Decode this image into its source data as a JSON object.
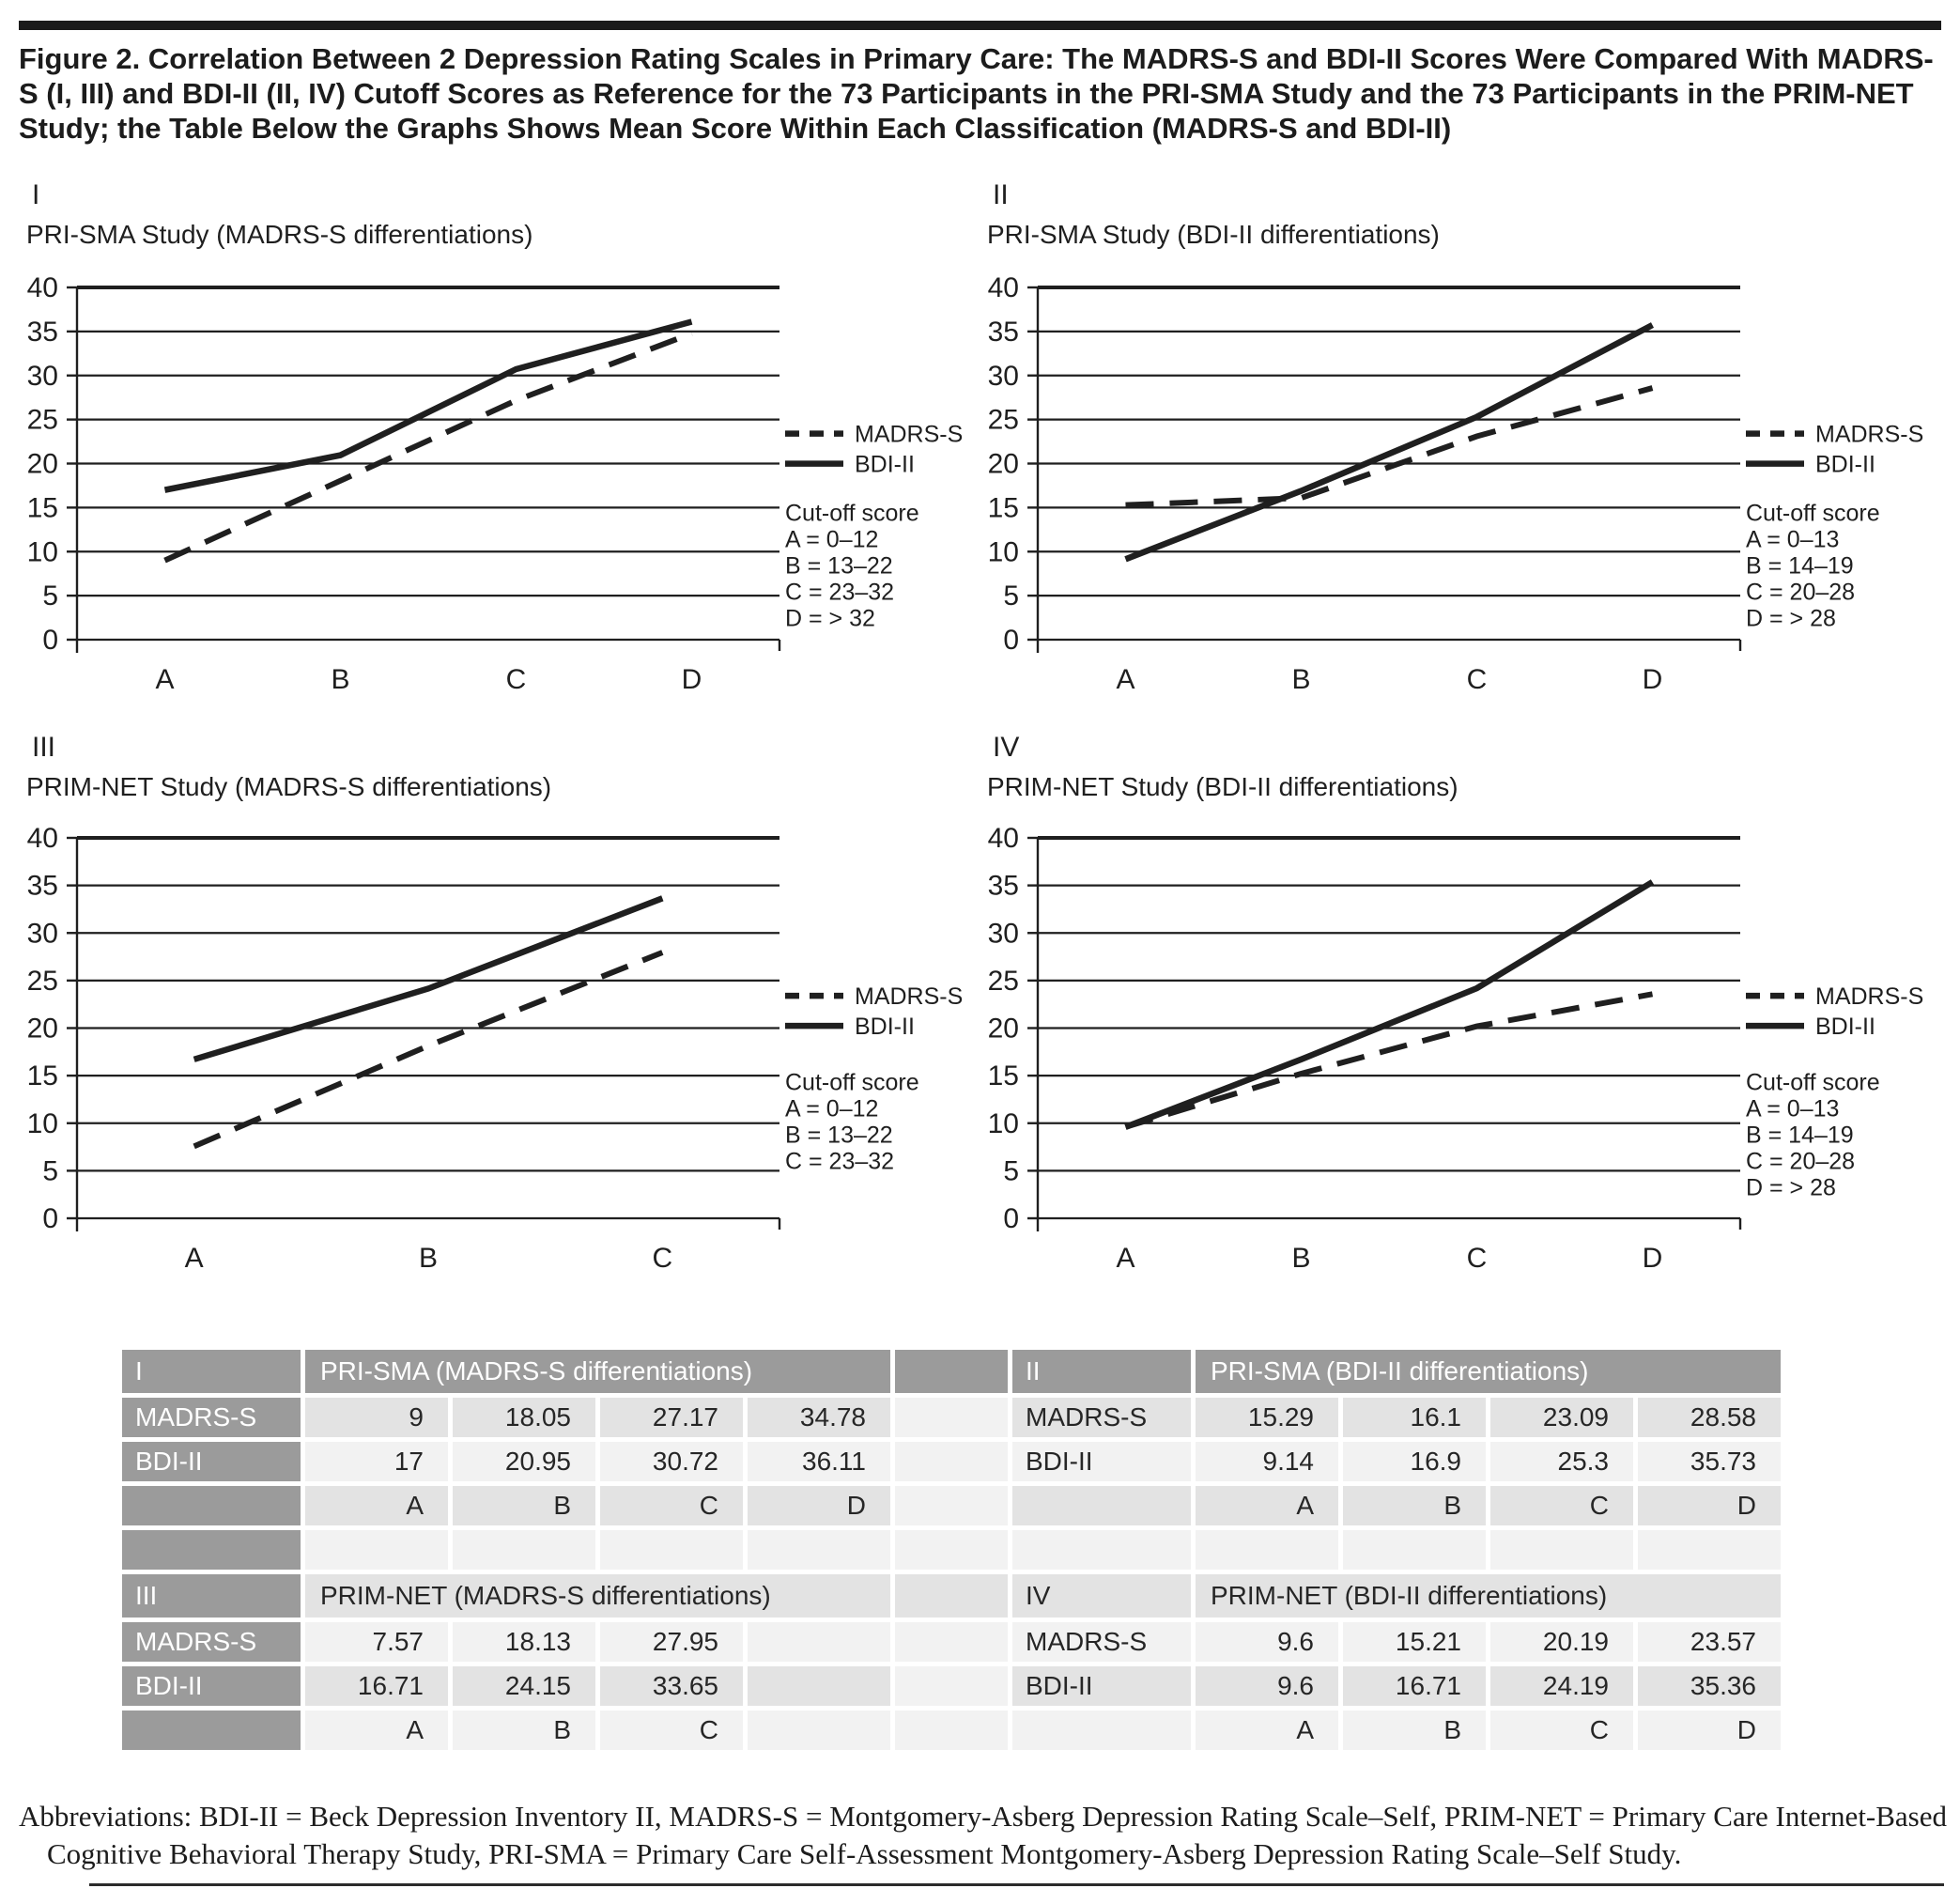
{
  "figure": {
    "title": "Figure 2. Correlation Between 2 Depression Rating Scales in Primary Care: The MADRS-S and BDI-II Scores Were Compared With MADRS-S (I, III) and BDI-II (II, IV) Cutoff Scores as Reference for the 73 Participants in the PRI-SMA Study and the 73 Participants in the PRIM-NET Study; the Table Below the Graphs Shows Mean Score Within Each Classification (MADRS-S and BDI-II)"
  },
  "colors": {
    "ink": "#1f1f1f",
    "table_header_gray": "#9b9b9b",
    "row_shade_dark": "#e3e3e3",
    "row_shade_light": "#f2f2f2",
    "rule_black": "#1a1a1a"
  },
  "chart_data": [
    {
      "type": "line",
      "numeral": "I",
      "title": "PRI-SMA Study (MADRS-S differentiations)",
      "categories": [
        "A",
        "B",
        "C",
        "D"
      ],
      "ylim": [
        0,
        40
      ],
      "ytick_step": 5,
      "grid": true,
      "legend_position": "right",
      "series": [
        {
          "name": "MADRS-S",
          "style": "dashed",
          "values": [
            9,
            18.05,
            27.17,
            34.78
          ]
        },
        {
          "name": "BDI-II",
          "style": "solid",
          "values": [
            17,
            20.95,
            30.72,
            36.11
          ]
        }
      ],
      "cutoff": {
        "title": "Cut-off score",
        "entries": [
          "A = 0–12",
          "B = 13–22",
          "C = 23–32",
          "D = > 32"
        ]
      }
    },
    {
      "type": "line",
      "numeral": "II",
      "title": "PRI-SMA Study (BDI-II differentiations)",
      "categories": [
        "A",
        "B",
        "C",
        "D"
      ],
      "ylim": [
        0,
        40
      ],
      "ytick_step": 5,
      "grid": true,
      "legend_position": "right",
      "series": [
        {
          "name": "MADRS-S",
          "style": "dashed",
          "values": [
            15.29,
            16.1,
            23.09,
            28.58
          ]
        },
        {
          "name": "BDI-II",
          "style": "solid",
          "values": [
            9.14,
            16.9,
            25.3,
            35.73
          ]
        }
      ],
      "cutoff": {
        "title": "Cut-off score",
        "entries": [
          "A = 0–13",
          "B = 14–19",
          "C = 20–28",
          "D = > 28"
        ]
      }
    },
    {
      "type": "line",
      "numeral": "III",
      "title": "PRIM-NET Study (MADRS-S differentiations)",
      "categories": [
        "A",
        "B",
        "C"
      ],
      "ylim": [
        0,
        40
      ],
      "ytick_step": 5,
      "grid": true,
      "legend_position": "right",
      "series": [
        {
          "name": "MADRS-S",
          "style": "dashed",
          "values": [
            7.57,
            18.13,
            27.95
          ]
        },
        {
          "name": "BDI-II",
          "style": "solid",
          "values": [
            16.71,
            24.15,
            33.65
          ]
        }
      ],
      "cutoff": {
        "title": "Cut-off score",
        "entries": [
          "A = 0–12",
          "B = 13–22",
          "C = 23–32"
        ]
      }
    },
    {
      "type": "line",
      "numeral": "IV",
      "title": "PRIM-NET Study (BDI-II differentiations)",
      "categories": [
        "A",
        "B",
        "C",
        "D"
      ],
      "ylim": [
        0,
        40
      ],
      "ytick_step": 5,
      "grid": true,
      "legend_position": "right",
      "series": [
        {
          "name": "MADRS-S",
          "style": "dashed",
          "values": [
            9.6,
            15.21,
            20.19,
            23.57
          ]
        },
        {
          "name": "BDI-II",
          "style": "solid",
          "values": [
            9.6,
            16.71,
            24.19,
            35.36
          ]
        }
      ],
      "cutoff": {
        "title": "Cut-off score",
        "entries": [
          "A = 0–13",
          "B = 14–19",
          "C = 20–28",
          "D = > 28"
        ]
      }
    }
  ],
  "table": {
    "sections": [
      {
        "id": "I",
        "title": "PRI-SMA (MADRS-S differentiations)",
        "rows": [
          {
            "label": "MADRS-S",
            "values": [
              "9",
              "18.05",
              "27.17",
              "34.78"
            ]
          },
          {
            "label": "BDI-II",
            "values": [
              "17",
              "20.95",
              "30.72",
              "36.11"
            ]
          }
        ],
        "categories": [
          "A",
          "B",
          "C",
          "D"
        ]
      },
      {
        "id": "II",
        "title": "PRI-SMA (BDI-II differentiations)",
        "rows": [
          {
            "label": "MADRS-S",
            "values": [
              "15.29",
              "16.1",
              "23.09",
              "28.58"
            ]
          },
          {
            "label": "BDI-II",
            "values": [
              "9.14",
              "16.9",
              "25.3",
              "35.73"
            ]
          }
        ],
        "categories": [
          "A",
          "B",
          "C",
          "D"
        ]
      },
      {
        "id": "III",
        "title": "PRIM-NET (MADRS-S differentiations)",
        "rows": [
          {
            "label": "MADRS-S",
            "values": [
              "7.57",
              "18.13",
              "27.95",
              ""
            ]
          },
          {
            "label": "BDI-II",
            "values": [
              "16.71",
              "24.15",
              "33.65",
              ""
            ]
          }
        ],
        "categories": [
          "A",
          "B",
          "C",
          ""
        ]
      },
      {
        "id": "IV",
        "title": "PRIM-NET (BDI-II differentiations)",
        "rows": [
          {
            "label": "MADRS-S",
            "values": [
              "9.6",
              "15.21",
              "20.19",
              "23.57"
            ]
          },
          {
            "label": "BDI-II",
            "values": [
              "9.6",
              "16.71",
              "24.19",
              "35.36"
            ]
          }
        ],
        "categories": [
          "A",
          "B",
          "C",
          "D"
        ]
      }
    ]
  },
  "footnote": {
    "text": "Abbreviations: BDI-II = Beck Depression Inventory II, MADRS-S = Montgomery-Asberg Depression Rating Scale–Self, PRIM-NET = Primary Care Internet-Based Cognitive Behavioral Therapy Study, PRI-SMA = Primary Care Self-Assessment Montgomery-Asberg Depression Rating Scale–Self Study."
  }
}
